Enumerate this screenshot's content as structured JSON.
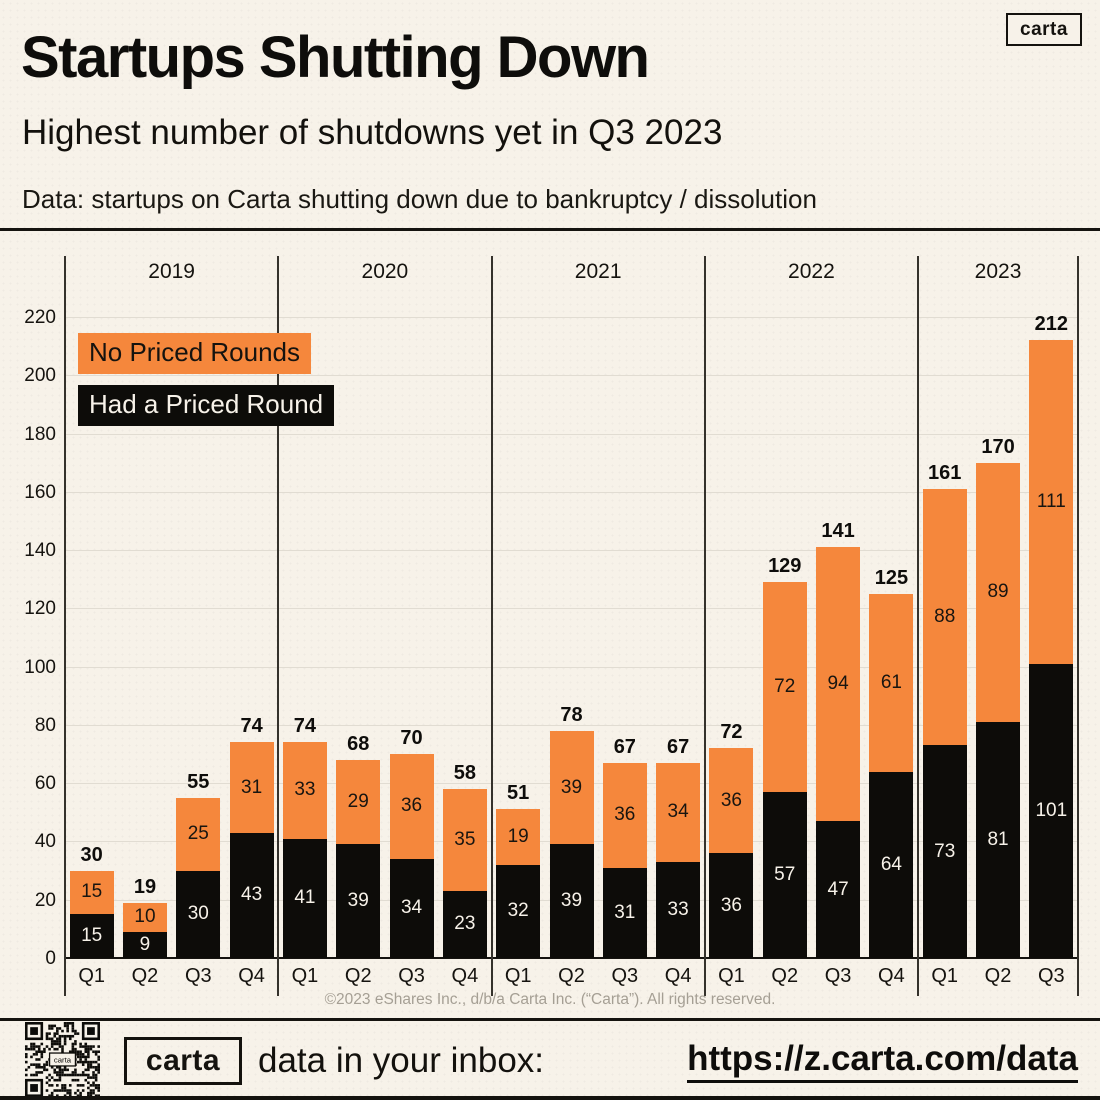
{
  "page": {
    "background": "#F7F2E9",
    "accent_orange": "#F5873C",
    "accent_black": "#0D0C09"
  },
  "header": {
    "logo_label": "carta",
    "title": "Startups Shutting Down",
    "subtitle": "Highest number of shutdowns yet in Q3 2023",
    "data_note": "Data: startups on Carta shutting down due to bankruptcy / dissolution"
  },
  "chart_data": {
    "type": "bar",
    "stacked": true,
    "title": "Startups Shutting Down",
    "xlabel": "",
    "ylabel": "",
    "ylim": [
      0,
      230
    ],
    "yticks": [
      0,
      20,
      40,
      60,
      80,
      100,
      120,
      140,
      160,
      180,
      200,
      220
    ],
    "grid": true,
    "legend_position": "upper-left",
    "legend": [
      {
        "label": "No Priced Rounds",
        "series": "no_priced_rounds",
        "color": "#F5873C"
      },
      {
        "label": "Had a Priced Round",
        "series": "had_priced_round",
        "color": "#0D0C09"
      }
    ],
    "groups": [
      {
        "year": "2019",
        "quarters": [
          "Q1",
          "Q2",
          "Q3",
          "Q4"
        ],
        "had_priced_round": [
          15,
          9,
          30,
          43
        ],
        "no_priced_rounds": [
          15,
          10,
          25,
          31
        ],
        "totals": [
          30,
          19,
          55,
          74
        ]
      },
      {
        "year": "2020",
        "quarters": [
          "Q1",
          "Q2",
          "Q3",
          "Q4"
        ],
        "had_priced_round": [
          41,
          39,
          34,
          23
        ],
        "no_priced_rounds": [
          33,
          29,
          36,
          35
        ],
        "totals": [
          74,
          68,
          70,
          58
        ]
      },
      {
        "year": "2021",
        "quarters": [
          "Q1",
          "Q2",
          "Q3",
          "Q4"
        ],
        "had_priced_round": [
          32,
          39,
          31,
          33
        ],
        "no_priced_rounds": [
          19,
          39,
          36,
          34
        ],
        "totals": [
          51,
          78,
          67,
          67
        ]
      },
      {
        "year": "2022",
        "quarters": [
          "Q1",
          "Q2",
          "Q3",
          "Q4"
        ],
        "had_priced_round": [
          36,
          57,
          47,
          64
        ],
        "no_priced_rounds": [
          36,
          72,
          94,
          61
        ],
        "totals": [
          72,
          129,
          141,
          125
        ]
      },
      {
        "year": "2023",
        "quarters": [
          "Q1",
          "Q2",
          "Q3"
        ],
        "had_priced_round": [
          73,
          81,
          101
        ],
        "no_priced_rounds": [
          88,
          89,
          111
        ],
        "totals": [
          161,
          170,
          212
        ]
      }
    ]
  },
  "footer": {
    "copyright": "©2023 eShares Inc., d/b/a Carta Inc. (“Carta”). All rights reserved.",
    "logo_label": "carta",
    "cta_text": "data in your inbox:",
    "cta_url": "https://z.carta.com/data"
  }
}
